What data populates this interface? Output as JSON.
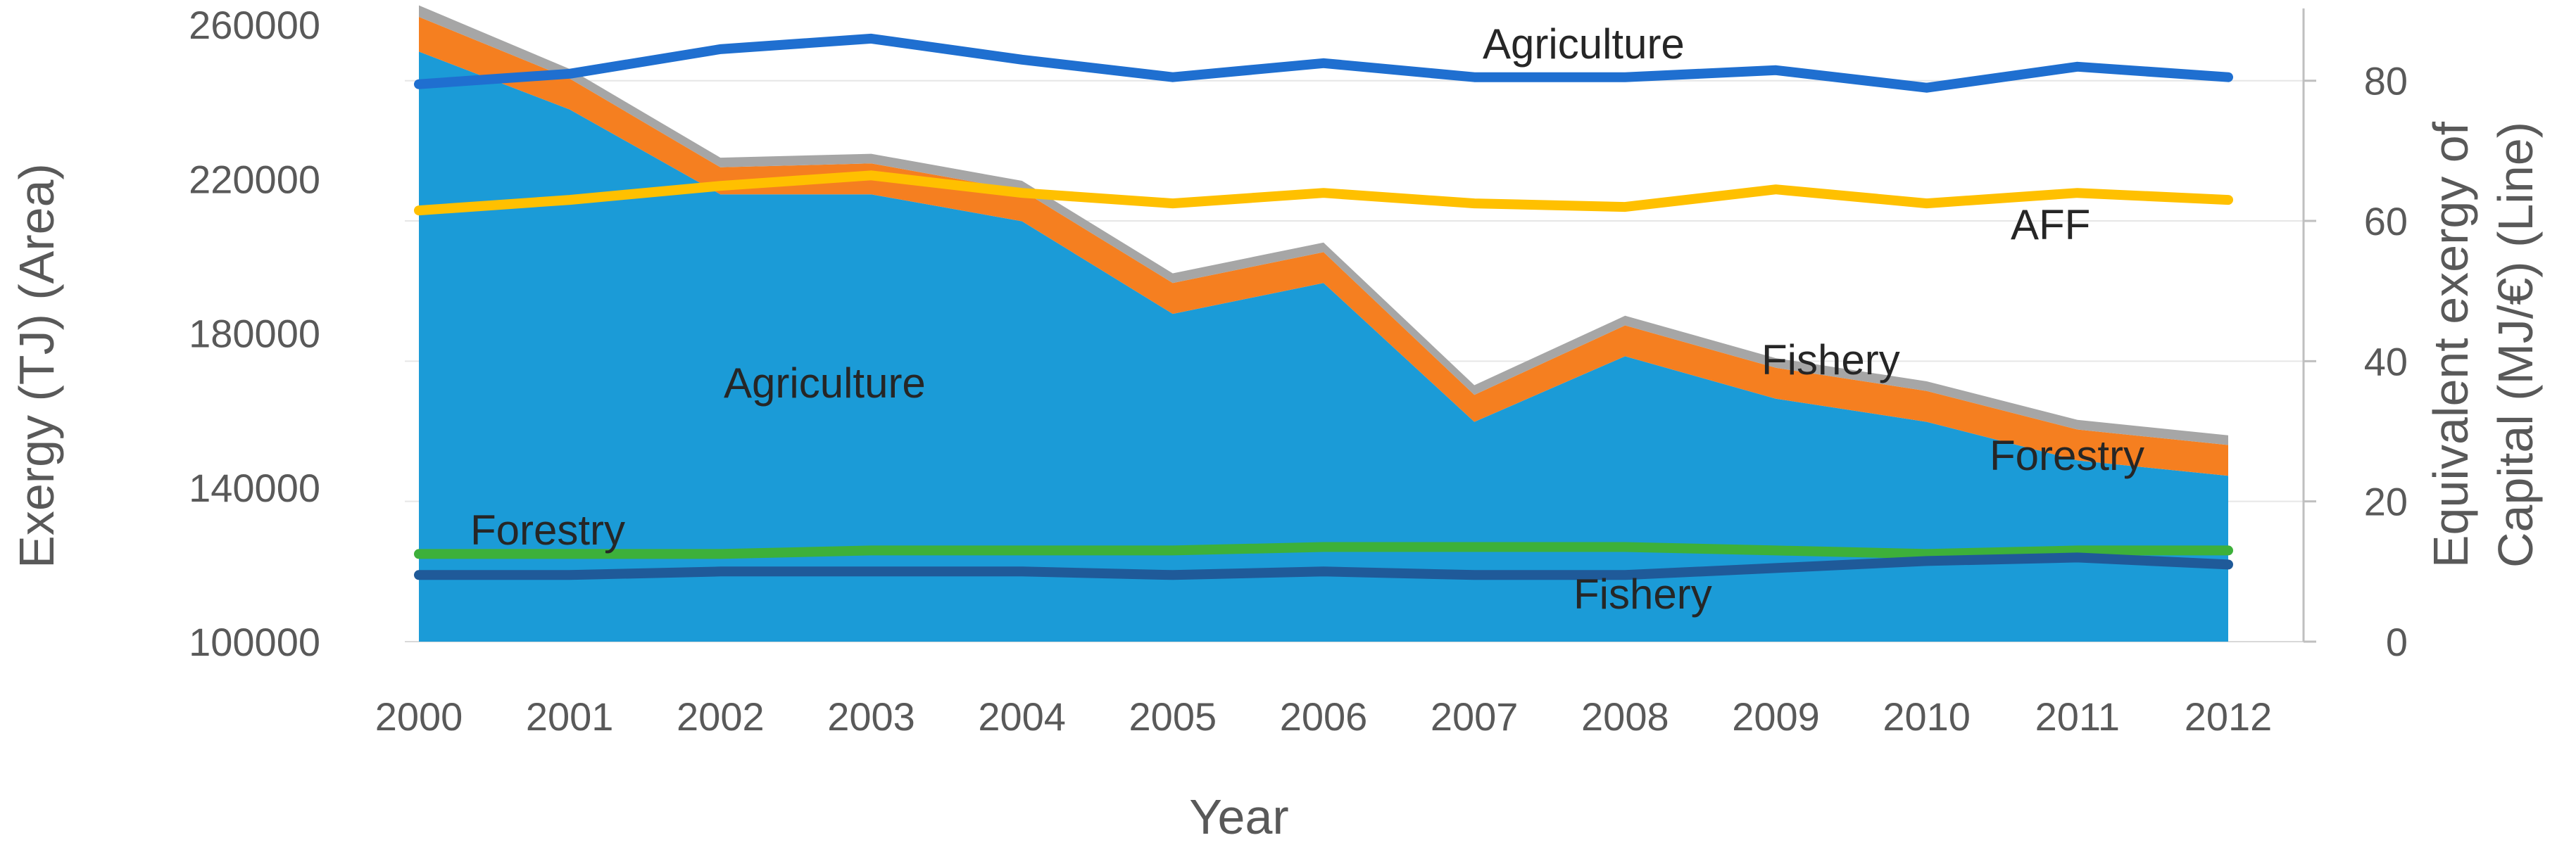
{
  "chart_data": {
    "type": "area+line",
    "x": [
      2000,
      2001,
      2002,
      2003,
      2004,
      2005,
      2006,
      2007,
      2008,
      2009,
      2010,
      2011,
      2012
    ],
    "xlabel": "Year",
    "ylabel_left": "Exergy (TJ) (Area)",
    "ylabel_right_line1": "Equivalent exergy of",
    "ylabel_right_line2": "Capital (MJ/€) (Line)",
    "ylim_left": [
      100000,
      260000
    ],
    "yticks_left": [
      100000,
      140000,
      180000,
      220000,
      260000
    ],
    "ylim_right": [
      0,
      88
    ],
    "yticks_right": [
      0,
      20,
      40,
      60,
      80
    ],
    "area_series": [
      {
        "name": "Agriculture",
        "color": "#1B9BD7",
        "values": [
          253000,
          238000,
          216000,
          216000,
          209000,
          185000,
          193000,
          157000,
          174000,
          163000,
          157000,
          147000,
          143000
        ]
      },
      {
        "name": "Forestry",
        "color": "#F57F20",
        "values": [
          9000,
          8000,
          7000,
          8000,
          8000,
          8000,
          8000,
          7000,
          8000,
          8000,
          8000,
          8000,
          8000
        ]
      },
      {
        "name": "Fishery",
        "color": "#A6A6A6",
        "values": [
          3000,
          2500,
          2500,
          2500,
          2500,
          2500,
          2500,
          2500,
          2500,
          2500,
          2500,
          2500,
          2500
        ]
      }
    ],
    "line_series": [
      {
        "name": "Agriculture",
        "color": "#1F6FD0",
        "values": [
          79.5,
          81,
          84.5,
          86,
          83,
          80.5,
          82.5,
          80.5,
          80.5,
          81.5,
          79,
          82,
          80.5
        ]
      },
      {
        "name": "AFF",
        "color": "#FFC000",
        "values": [
          61.5,
          63,
          65,
          66.5,
          64,
          62.5,
          64,
          62.5,
          62,
          64.5,
          62.5,
          64,
          63
        ]
      },
      {
        "name": "Forestry",
        "color": "#3DB03A",
        "values": [
          12.5,
          12.5,
          12.5,
          13,
          13,
          13,
          13.5,
          13.5,
          13.5,
          13,
          12.5,
          13,
          13
        ]
      },
      {
        "name": "Fishery",
        "color": "#1F5A99",
        "values": [
          9.5,
          9.5,
          10,
          10,
          10,
          9.5,
          10,
          9.5,
          9.5,
          10.5,
          11.5,
          12,
          11
        ]
      }
    ],
    "labels": {
      "area_agriculture": "Agriculture",
      "area_forestry": "Forestry",
      "area_fishery": "Fishery",
      "line_agriculture": "Agriculture",
      "line_aff": "AFF",
      "line_forestry": "Forestry",
      "line_fishery": "Fishery"
    }
  }
}
